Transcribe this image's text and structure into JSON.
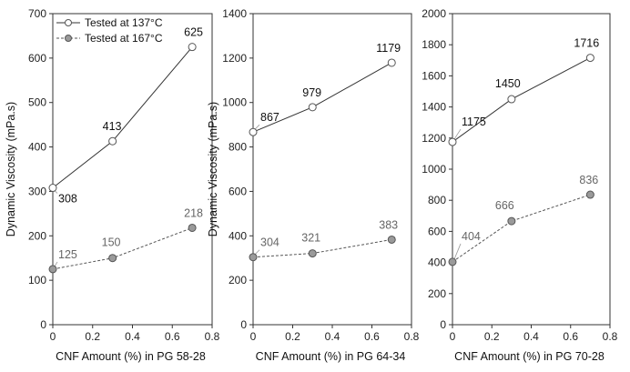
{
  "chart_data": [
    {
      "type": "line",
      "xlabel": "CNF Amount (%) in PG 58-28",
      "ylabel": "Dynamic Viscosity (mPa.s)",
      "xlim": [
        0,
        0.8
      ],
      "ylim": [
        0,
        700
      ],
      "xticks": [
        "0",
        "0.2",
        "0.4",
        "0.6",
        "0.8"
      ],
      "yticks": [
        "0",
        "100",
        "200",
        "300",
        "400",
        "500",
        "600",
        "700"
      ],
      "legend": "top-left",
      "series": [
        {
          "name": "Tested at 137°C",
          "x": [
            0,
            0.3,
            0.7
          ],
          "values": [
            308,
            413,
            625
          ],
          "labels": [
            "308",
            "413",
            "625"
          ],
          "style": "solid",
          "marker": "open-circle"
        },
        {
          "name": "Tested at 167°C",
          "x": [
            0,
            0.3,
            0.7
          ],
          "values": [
            125,
            150,
            218
          ],
          "labels": [
            "125",
            "150",
            "218"
          ],
          "style": "dashed",
          "marker": "filled-circle"
        }
      ]
    },
    {
      "type": "line",
      "xlabel": "CNF Amount (%) in PG 64-34",
      "ylabel": "Dynamic Viscosity (mPa.s)",
      "xlim": [
        0,
        0.8
      ],
      "ylim": [
        0,
        1400
      ],
      "xticks": [
        "0",
        "0.2",
        "0.4",
        "0.6",
        "0.8"
      ],
      "yticks": [
        "0",
        "200",
        "400",
        "600",
        "800",
        "1000",
        "1200",
        "1400"
      ],
      "series": [
        {
          "name": "",
          "x": [
            0,
            0.3,
            0.7
          ],
          "values": [
            867,
            979,
            1179
          ],
          "labels": [
            "867",
            "979",
            "1179"
          ],
          "style": "solid",
          "marker": "open-circle"
        },
        {
          "name": "",
          "x": [
            0,
            0.3,
            0.7
          ],
          "values": [
            304,
            321,
            383
          ],
          "labels": [
            "304",
            "321",
            "383"
          ],
          "style": "dashed",
          "marker": "filled-circle"
        }
      ]
    },
    {
      "type": "line",
      "xlabel": "CNF Amount (%) in PG 70-28",
      "ylabel": "",
      "xlim": [
        0,
        0.8
      ],
      "ylim": [
        0,
        2000
      ],
      "xticks": [
        "0",
        "0.2",
        "0.4",
        "0.6",
        "0.8"
      ],
      "yticks": [
        "0",
        "200",
        "400",
        "600",
        "800",
        "1000",
        "1200",
        "1400",
        "1600",
        "1800",
        "2000"
      ],
      "series": [
        {
          "name": "",
          "x": [
            0,
            0.3,
            0.7
          ],
          "values": [
            1175,
            1450,
            1716
          ],
          "labels": [
            "1175",
            "1450",
            "1716"
          ],
          "style": "solid",
          "marker": "open-circle"
        },
        {
          "name": "",
          "x": [
            0,
            0.3,
            0.7
          ],
          "values": [
            404,
            666,
            836
          ],
          "labels": [
            "404",
            "666",
            "836"
          ],
          "style": "dashed",
          "marker": "filled-circle"
        }
      ]
    }
  ]
}
